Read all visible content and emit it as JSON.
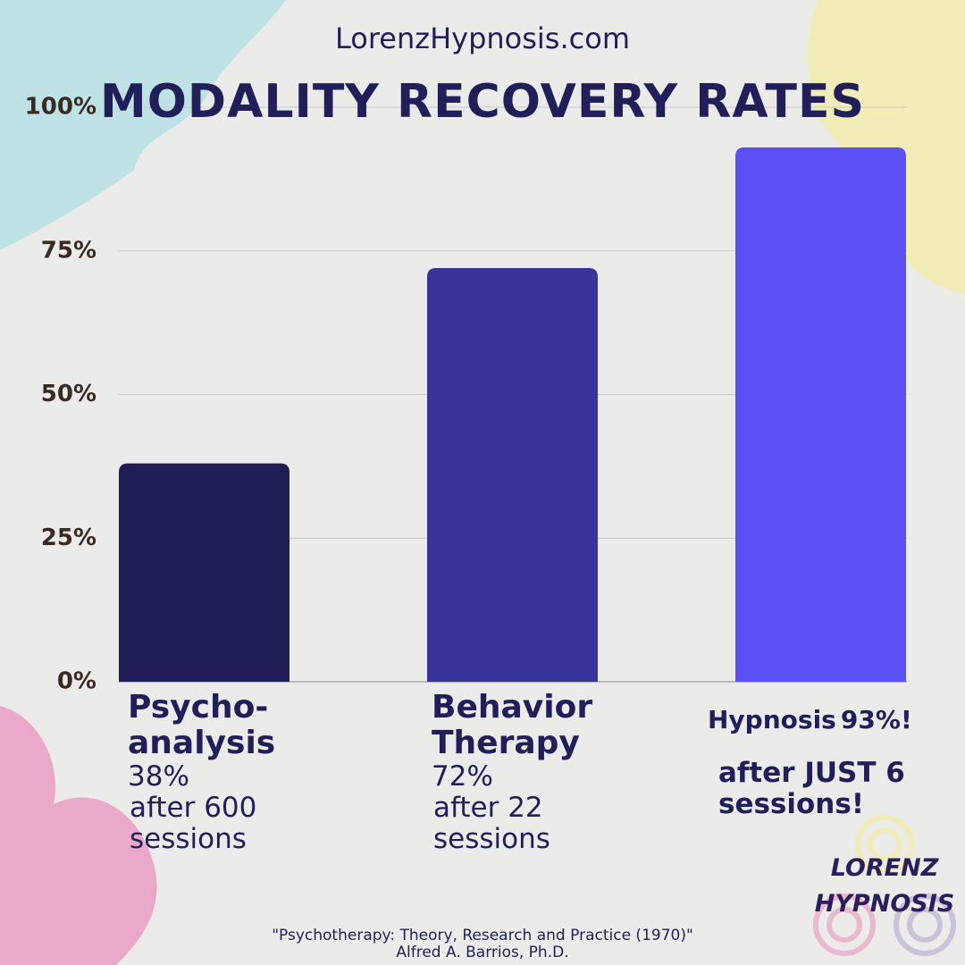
{
  "site": "LorenzHypnosis.com",
  "chart_data": {
    "type": "bar",
    "title": "MODALITY RECOVERY RATES",
    "categories": [
      "Psycho-analysis",
      "Behavior Therapy",
      "Hypnosis"
    ],
    "values": [
      38,
      72,
      93
    ],
    "value_labels": [
      "38%",
      "72%",
      "93%!"
    ],
    "notes": [
      "after 600 sessions",
      "after 22 sessions",
      "after JUST 6 sessions!"
    ],
    "colors": [
      "#1f1d55",
      "#3a3399",
      "#5a50f5"
    ],
    "ylim": [
      0,
      100
    ],
    "yticks": [
      {
        "value": 0,
        "label": "0%"
      },
      {
        "value": 25,
        "label": "25%"
      },
      {
        "value": 50,
        "label": "50%"
      },
      {
        "value": 75,
        "label": "75%"
      },
      {
        "value": 100,
        "label": "100%"
      }
    ],
    "grid": true
  },
  "logo": [
    "LORENZ",
    "HYPNOSIS"
  ],
  "source": [
    "\"Psychotherapy: Theory, Research and Practice (1970)\"",
    "Alfred A. Barrios, Ph.D."
  ]
}
